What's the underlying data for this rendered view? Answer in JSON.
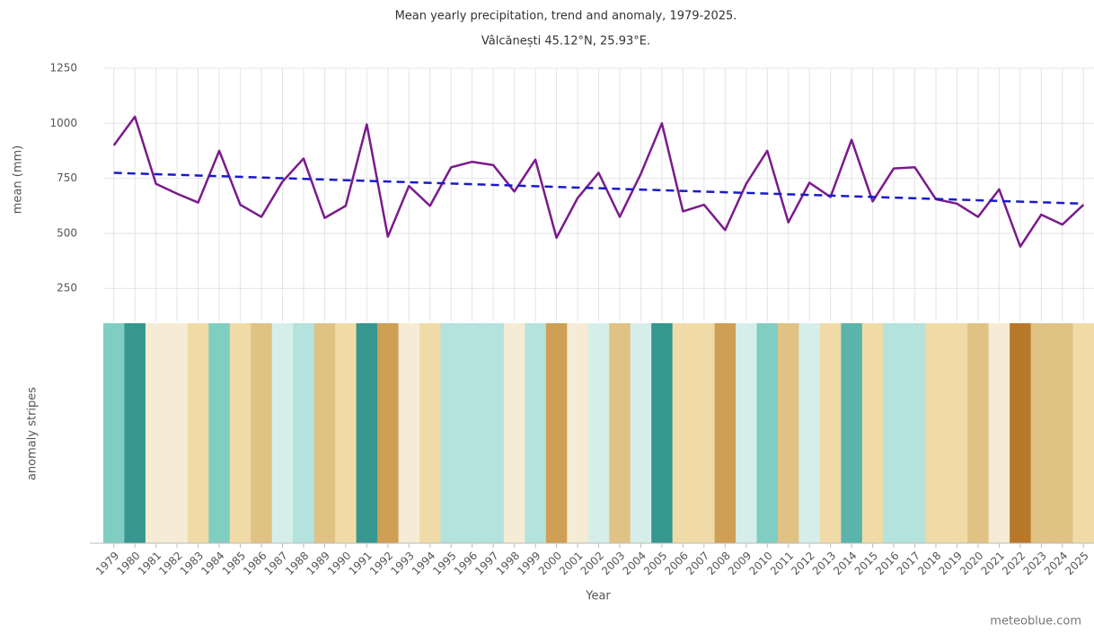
{
  "chart_data": {
    "type": "line",
    "title": "Mean yearly precipitation, trend and anomaly, 1979-2025.",
    "subtitle": "Vâlcănești 45.12°N, 25.93°E.",
    "y_label": "mean (mm)",
    "stripes_label": "anomaly stripes",
    "x_label": "Year",
    "credit": "meteoblue.com",
    "x": [
      1979,
      1980,
      1981,
      1982,
      1983,
      1984,
      1985,
      1986,
      1987,
      1988,
      1989,
      1990,
      1991,
      1992,
      1993,
      1994,
      1995,
      1996,
      1997,
      1998,
      1999,
      2000,
      2001,
      2002,
      2003,
      2004,
      2005,
      2006,
      2007,
      2008,
      2009,
      2010,
      2011,
      2012,
      2013,
      2014,
      2015,
      2016,
      2017,
      2018,
      2019,
      2020,
      2021,
      2022,
      2023,
      2024,
      2025
    ],
    "series": [
      {
        "color": "#7b1a8c",
        "values": [
          900,
          1030,
          725,
          680,
          640,
          875,
          630,
          575,
          735,
          840,
          570,
          625,
          995,
          485,
          715,
          625,
          800,
          825,
          810,
          690,
          835,
          480,
          660,
          775,
          575,
          770,
          1000,
          600,
          630,
          515,
          725,
          875,
          550,
          730,
          665,
          925,
          645,
          795,
          800,
          655,
          635,
          575,
          700,
          440,
          585,
          540,
          630
        ]
      }
    ],
    "trend": {
      "color": "#1a1acc",
      "values": [
        775,
        635
      ]
    },
    "stripe_colors": [
      "#80cdc1",
      "#35978f",
      "#f6ebd4",
      "#f6ebd4",
      "#f0dba8",
      "#80cdc1",
      "#f0dba8",
      "#e0c285",
      "#d6eeea",
      "#b4e2dc",
      "#e0c285",
      "#f0dba8",
      "#35978f",
      "#cf9f55",
      "#f6ebd4",
      "#f0dba8",
      "#b4e2dc",
      "#b4e2dc",
      "#b4e2dc",
      "#f6ebd4",
      "#b4e2dc",
      "#cf9f55",
      "#f6ebd4",
      "#d6eeea",
      "#e0c285",
      "#d6eeea",
      "#35978f",
      "#f0dba8",
      "#f0dba8",
      "#cf9f55",
      "#d6eeea",
      "#80cdc1",
      "#e0c285",
      "#d6eeea",
      "#f0dba8",
      "#5ab4ac",
      "#f0dba8",
      "#b4e2dc",
      "#b4e2dc",
      "#f0dba8",
      "#f0dba8",
      "#e0c285",
      "#f6ebd4",
      "#b8782a",
      "#e0c285",
      "#e0c285",
      "#f0dba8"
    ],
    "ylim": [
      100,
      1250
    ],
    "yticks": [
      250,
      500,
      750,
      1000,
      1250
    ],
    "grid": true
  }
}
